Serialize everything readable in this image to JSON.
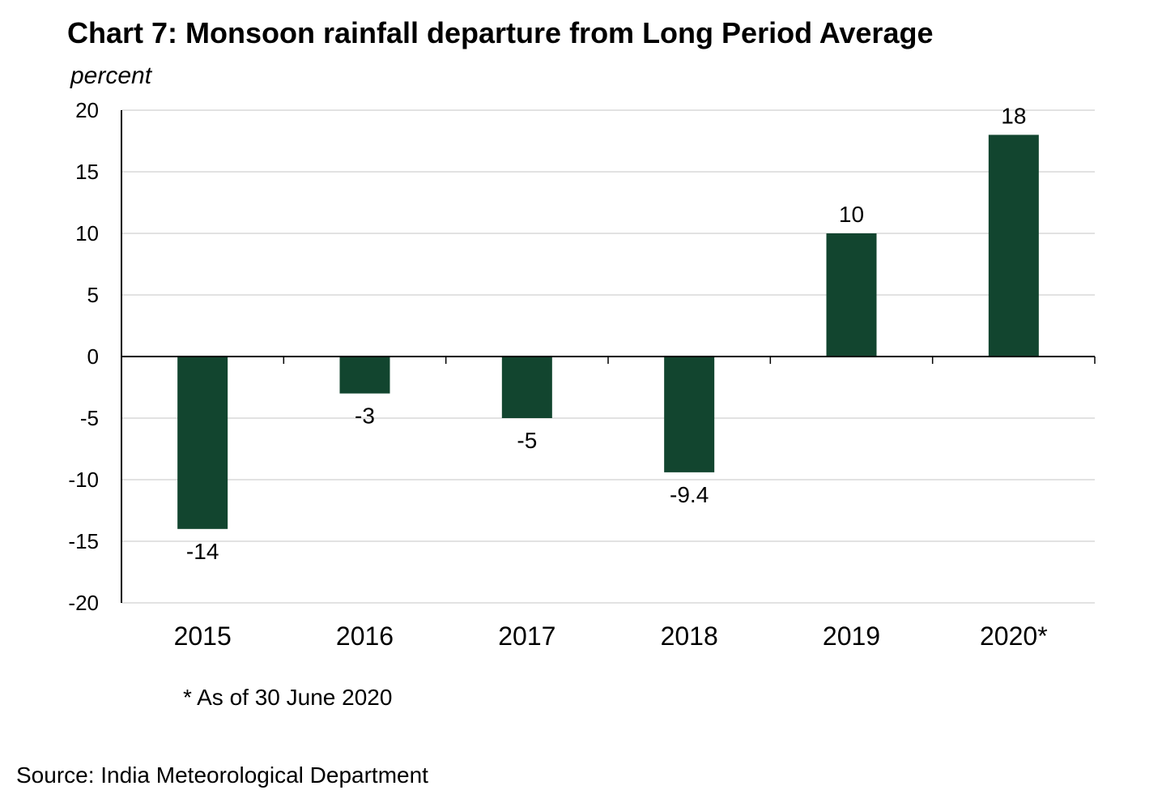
{
  "chart_data": {
    "type": "bar",
    "title": "Chart 7: Monsoon rainfall departure from Long Period Average",
    "ylabel": "percent",
    "xlabel": "",
    "categories": [
      "2015",
      "2016",
      "2017",
      "2018",
      "2019",
      "2020*"
    ],
    "values": [
      -14,
      -3,
      -5,
      -9.4,
      10,
      18
    ],
    "data_labels": [
      "-14",
      "-3",
      "-5",
      "-9.4",
      "10",
      "18"
    ],
    "ylim": [
      -20,
      20
    ],
    "yticks": [
      20,
      15,
      10,
      5,
      0,
      -5,
      -10,
      -15,
      -20
    ],
    "grid": true,
    "bar_color": "#12452f",
    "grid_color": "#d9d9d9",
    "footnote": "* As of 30 June 2020",
    "source": "Source: India Meteorological Department"
  }
}
